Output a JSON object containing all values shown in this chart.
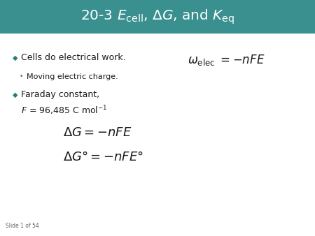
{
  "header_bg": "#3A8F8F",
  "header_text_color": "#FFFFFF",
  "slide_bg": "#FFFFFF",
  "bullet_color": "#2E7B7B",
  "body_text_color": "#1a1a1a",
  "bullet1": "Cells do electrical work.",
  "subbullet1": "Moving electric charge.",
  "bullet2_line1": "Faraday constant,",
  "slide_label": "Slide 1 of 54",
  "fig_width": 4.5,
  "fig_height": 3.38,
  "dpi": 100
}
